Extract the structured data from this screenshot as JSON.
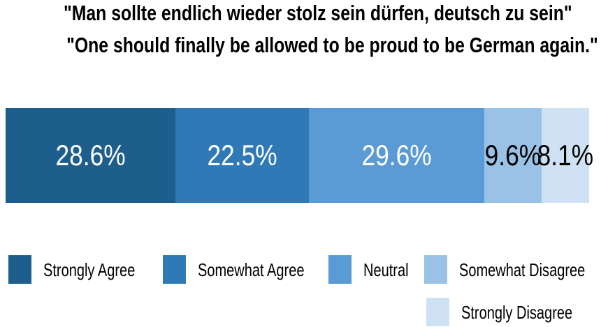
{
  "title": {
    "german": "\"Man sollte endlich wieder stolz sein dürfen, deutsch zu sein\"",
    "english": "\"One should finally be allowed to be proud to be German again.\""
  },
  "chart_data": {
    "type": "bar",
    "subtype": "horizontal-stacked-single-bar",
    "title": "\"Man sollte endlich wieder stolz sein dürfen, deutsch zu sein\"",
    "subtitle": "\"One should finally be allowed to be proud to be German again.\"",
    "categories": [
      "Strongly Agree",
      "Somewhat Agree",
      "Neutral",
      "Somewhat Disagree",
      "Strongly Disagree"
    ],
    "values": [
      28.6,
      22.5,
      29.6,
      9.6,
      8.1
    ],
    "labels": [
      "28.6%",
      "22.5%",
      "29.6%",
      "9.6%",
      "8.1%"
    ],
    "colors": [
      "#1e5e8d",
      "#2e79b6",
      "#5b9bd5",
      "#9ac2e6",
      "#cfe2f3"
    ],
    "label_text_colors": [
      "#ffffff",
      "#ffffff",
      "#ffffff",
      "#000000",
      "#000000"
    ],
    "xlim": [
      0,
      100
    ],
    "grid": false,
    "legend_position": "bottom"
  },
  "legend": {
    "items": [
      {
        "label": "Strongly Agree",
        "color": "#1e5e8d"
      },
      {
        "label": "Somewhat Agree",
        "color": "#2e79b6"
      },
      {
        "label": "Neutral",
        "color": "#5b9bd5"
      },
      {
        "label": "Somewhat Disagree",
        "color": "#9ac2e6"
      },
      {
        "label": "Strongly Disagree",
        "color": "#cfe2f3"
      }
    ]
  }
}
